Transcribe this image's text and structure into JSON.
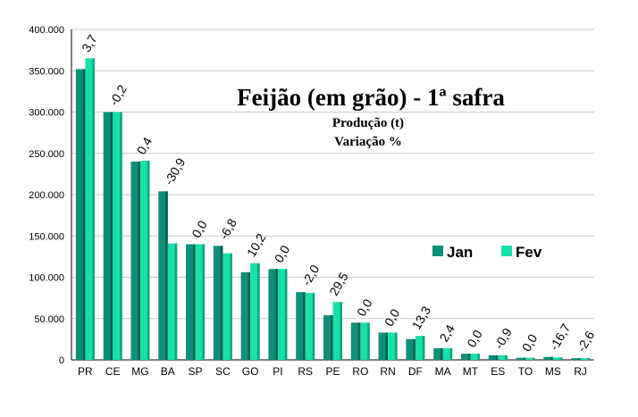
{
  "chart_data": {
    "type": "bar",
    "title": "Feijão (em grão) - 1ª safra",
    "subtitle_1": "Produção (t)",
    "subtitle_2": "Variação %",
    "categories": [
      "PR",
      "CE",
      "MG",
      "BA",
      "SP",
      "SC",
      "GO",
      "PI",
      "RS",
      "PE",
      "RO",
      "RN",
      "DF",
      "MA",
      "MT",
      "ES",
      "TO",
      "MS",
      "RJ"
    ],
    "series": [
      {
        "name": "Jan",
        "color": "#0f8f78",
        "values": [
          352000,
          300000,
          240000,
          204000,
          140000,
          138000,
          106000,
          110000,
          82000,
          54000,
          45000,
          33000,
          25000,
          14000,
          7500,
          5500,
          2500,
          3500,
          2000
        ]
      },
      {
        "name": "Fev",
        "color": "#18e0a8",
        "values": [
          365000,
          300000,
          241000,
          141000,
          140000,
          129000,
          117000,
          110000,
          81000,
          70000,
          45000,
          33000,
          29000,
          14000,
          7500,
          5500,
          2500,
          3000,
          2000
        ]
      }
    ],
    "variation_labels": [
      "3,7",
      "-0,2",
      "0,4",
      "-30,9",
      "0,0",
      "-6,8",
      "10,2",
      "0,0",
      "-2,0",
      "29,5",
      "0,0",
      "0,0",
      "13,3",
      "2,4",
      "0,0",
      "-0,9",
      "0,0",
      "-16,7",
      "-2,6"
    ],
    "y_ticks": [
      "0",
      "50.000",
      "100.000",
      "150.000",
      "200.000",
      "250.000",
      "300.000",
      "350.000",
      "400.000"
    ],
    "ylim": [
      0,
      400000
    ],
    "grid": true,
    "legend_position": "right"
  }
}
